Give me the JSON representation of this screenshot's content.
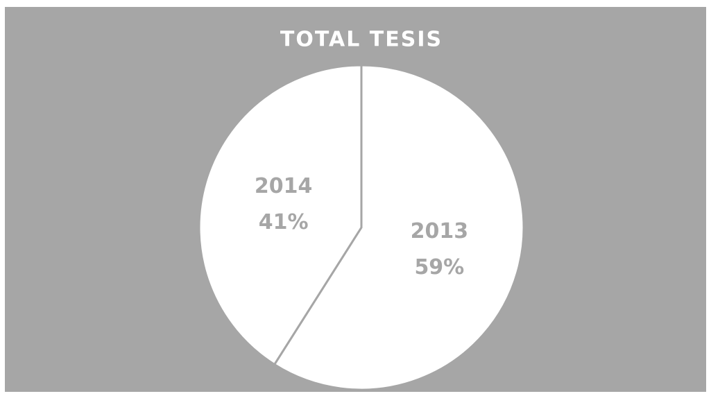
{
  "chart_data": {
    "type": "pie",
    "title": "TOTAL TESIS",
    "categories": [
      "2013",
      "2014"
    ],
    "values": [
      59,
      41
    ],
    "value_labels": [
      "59%",
      "41%"
    ],
    "colors": [
      "#ffffff",
      "#ffffff"
    ],
    "start_angle": 0,
    "direction": "clockwise"
  }
}
